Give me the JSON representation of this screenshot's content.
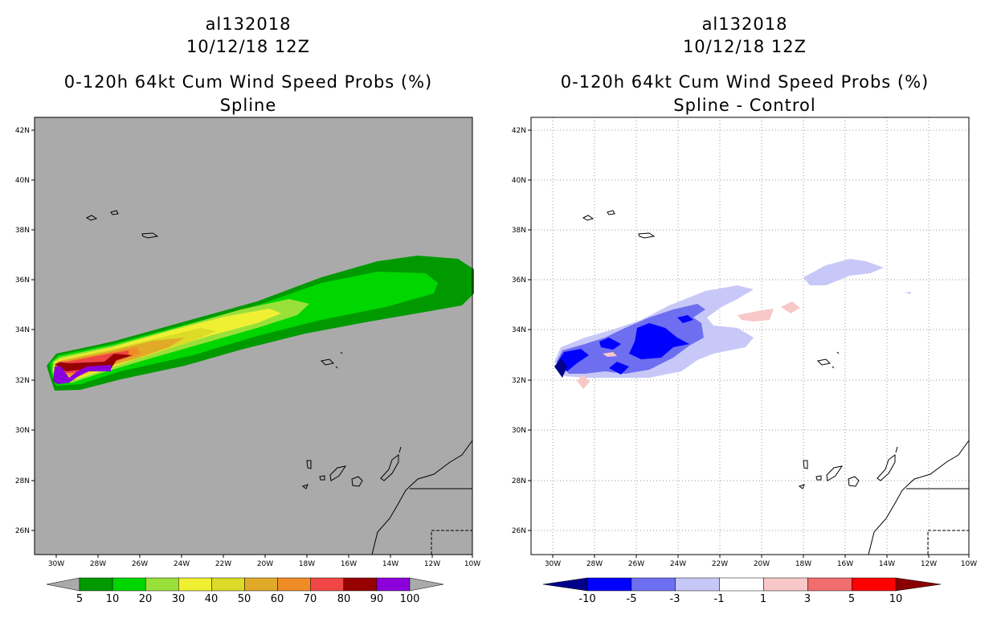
{
  "left_panel": {
    "storm_id": "al132018",
    "datetime": "10/12/18 12Z",
    "product": "0-120h 64kt Cum Wind Speed Probs (%)",
    "subtitle": "Spline",
    "background_color": "#aaaaaa",
    "colorbar": {
      "labels": [
        "5",
        "10",
        "20",
        "30",
        "40",
        "50",
        "60",
        "70",
        "80",
        "90",
        "100"
      ],
      "colors": [
        "#009a00",
        "#00d600",
        "#9ae03a",
        "#f0f032",
        "#dcdc28",
        "#e0aa28",
        "#f08c28",
        "#f04646",
        "#960000",
        "#8c00dc"
      ]
    }
  },
  "right_panel": {
    "storm_id": "al132018",
    "datetime": "10/12/18 12Z",
    "product": "0-120h 64kt Cum Wind Speed Probs (%)",
    "subtitle": "Spline - Control",
    "background_color": "#ffffff",
    "colorbar": {
      "labels": [
        "-10",
        "-5",
        "-3",
        "-1",
        "1",
        "3",
        "5",
        "10"
      ],
      "colors": [
        "#0000ff",
        "#6e6ef0",
        "#c8c8f8",
        "#ffffff",
        "#f8c8c8",
        "#f06e6e",
        "#ff0000"
      ]
    }
  },
  "axes": {
    "lat_labels": [
      "42N",
      "40N",
      "38N",
      "36N",
      "34N",
      "32N",
      "30N",
      "28N",
      "26N"
    ],
    "lon_labels": [
      "30W",
      "28W",
      "26W",
      "24W",
      "22W",
      "20W",
      "18W",
      "16W",
      "14W",
      "12W",
      "10W"
    ]
  }
}
